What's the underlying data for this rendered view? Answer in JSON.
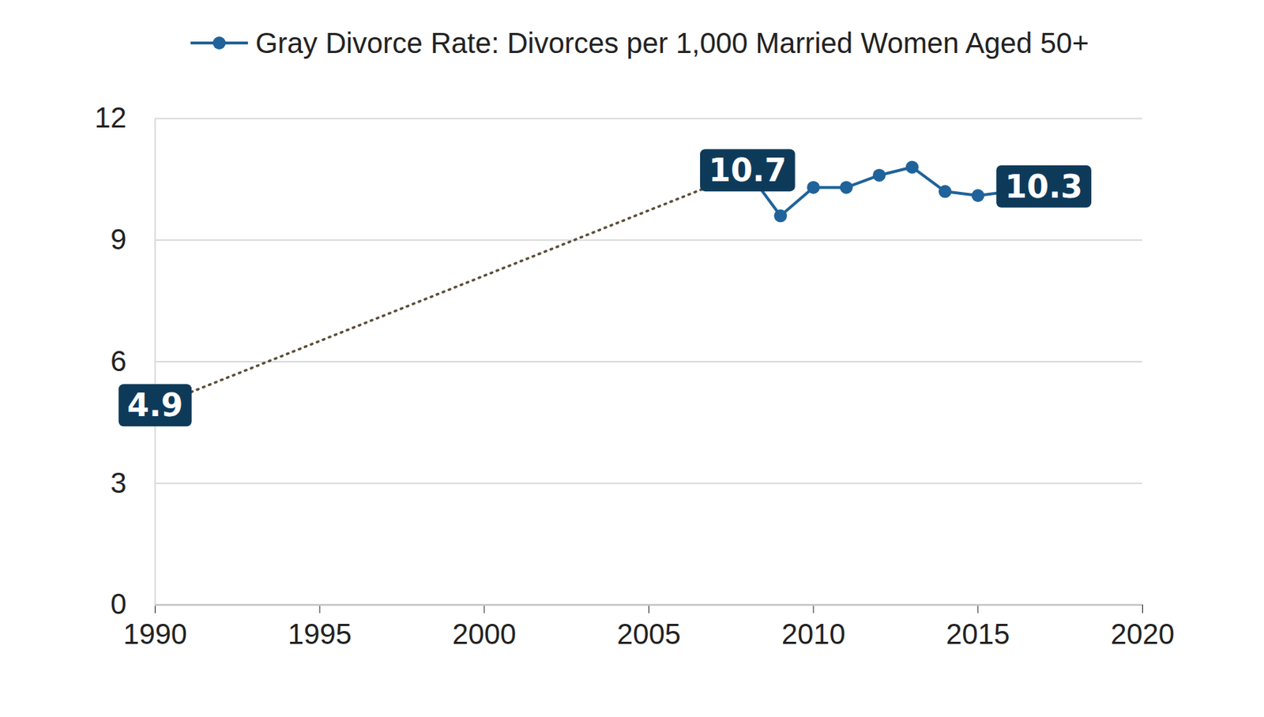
{
  "chart_data": {
    "type": "line",
    "legend": "top",
    "grid": true,
    "data_labels": true,
    "xlim": [
      1990,
      2020
    ],
    "xticks": [
      1990,
      1995,
      2000,
      2005,
      2010,
      2015,
      2020
    ],
    "ylim": [
      0,
      12
    ],
    "yticks": [
      0,
      3,
      6,
      9,
      12
    ],
    "series": [
      {
        "name": "Gray Divorce Rate: Divorces per 1,000 Married Women Aged 50+",
        "color": "#1f639a",
        "marker": "circle",
        "line_style": "solid",
        "x": [
          2008,
          2009,
          2010,
          2011,
          2012,
          2013,
          2014,
          2015,
          2016,
          2017
        ],
        "values": [
          10.7,
          9.6,
          10.3,
          10.3,
          10.6,
          10.8,
          10.2,
          10.1,
          10.2,
          10.3
        ],
        "value_labels": [
          "10.7",
          null,
          null,
          null,
          null,
          null,
          null,
          null,
          null,
          "10.3"
        ]
      },
      {
        "color": "#5b4f3a",
        "marker": "none",
        "line_style": "dotted",
        "x": [
          1990,
          2008
        ],
        "values": [
          4.9,
          10.7
        ],
        "value_labels": [
          "4.9",
          null
        ]
      }
    ]
  }
}
